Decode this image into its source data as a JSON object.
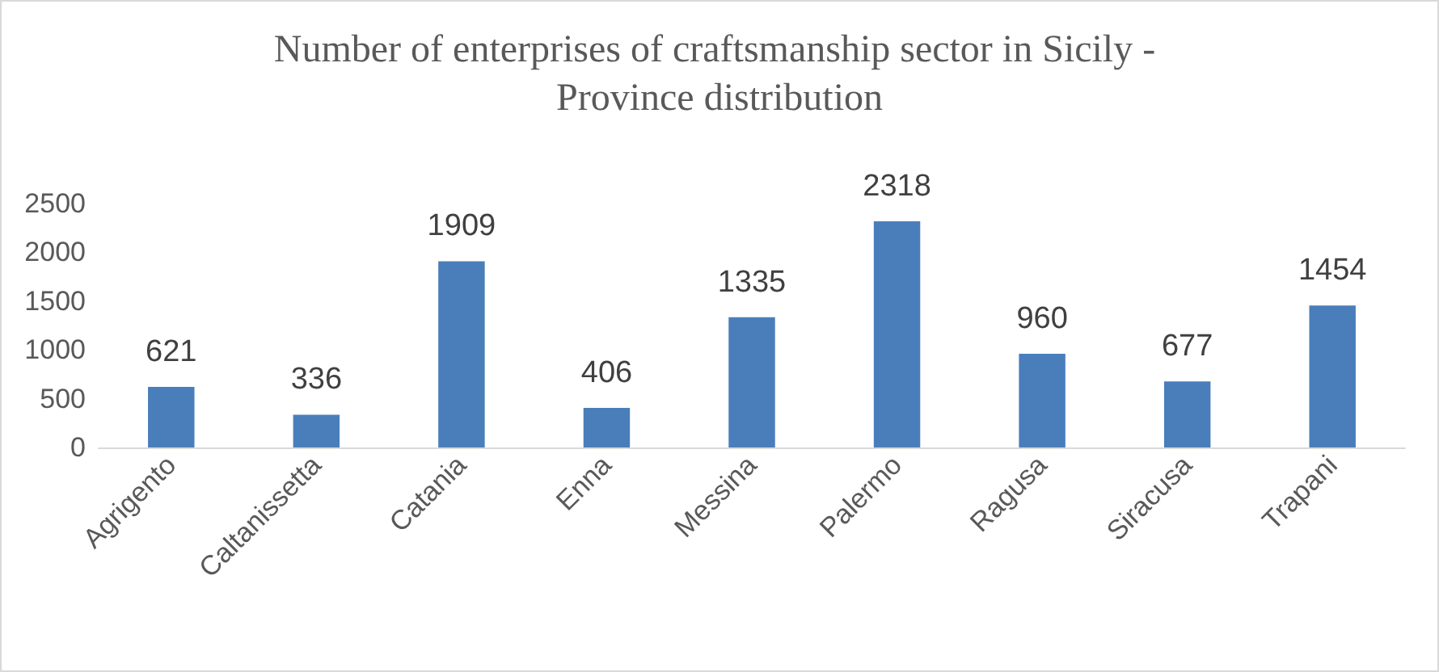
{
  "chart_data": {
    "type": "bar",
    "title": "Number of enterprises of craftsmanship sector in Sicily - Province distribution",
    "categories": [
      "Agrigento",
      "Caltanissetta",
      "Catania",
      "Enna",
      "Messina",
      "Palermo",
      "Ragusa",
      "Siracusa",
      "Trapani"
    ],
    "values": [
      621,
      336,
      1909,
      406,
      1335,
      2318,
      960,
      677,
      1454
    ],
    "color": "#4a7ebb",
    "ylim": [
      0,
      2500
    ],
    "yticks": [
      0,
      500,
      1000,
      1500,
      2000,
      2500
    ],
    "grid": false,
    "data_labels": true
  }
}
